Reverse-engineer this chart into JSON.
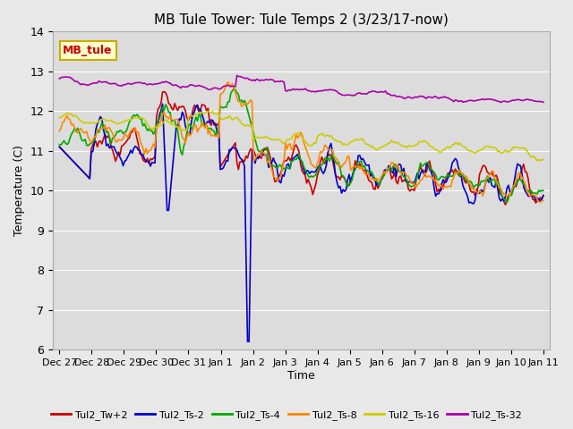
{
  "title": "MB Tule Tower: Tule Temps 2 (3/23/17-now)",
  "xlabel": "Time",
  "ylabel": "Temperature (C)",
  "ylim": [
    6.0,
    14.0
  ],
  "yticks": [
    6.0,
    7.0,
    8.0,
    9.0,
    10.0,
    11.0,
    12.0,
    13.0,
    14.0
  ],
  "background_color": "#e8e8e8",
  "plot_bg_color": "#dcdcdc",
  "series": {
    "Tul2_Tw+2": {
      "color": "#cc0000",
      "lw": 1.2
    },
    "Tul2_Ts-2": {
      "color": "#0000cc",
      "lw": 1.2
    },
    "Tul2_Ts-4": {
      "color": "#00aa00",
      "lw": 1.2
    },
    "Tul2_Ts-8": {
      "color": "#ff8800",
      "lw": 1.2
    },
    "Tul2_Ts-16": {
      "color": "#cccc00",
      "lw": 1.2
    },
    "Tul2_Ts-32": {
      "color": "#aa00aa",
      "lw": 1.2
    }
  },
  "xtick_labels": [
    "Dec 27",
    "Dec 28",
    "Dec 29",
    "Dec 30",
    "Dec 31",
    "Jan 1",
    "Jan 2",
    "Jan 3",
    "Jan 4",
    "Jan 5",
    "Jan 6",
    "Jan 7",
    "Jan 8",
    "Jan 9",
    "Jan 10",
    "Jan 11"
  ],
  "watermark": "MB_tule",
  "watermark_color": "#cc0000",
  "watermark_bg": "#ffffcc",
  "watermark_border": "#ccaa00"
}
